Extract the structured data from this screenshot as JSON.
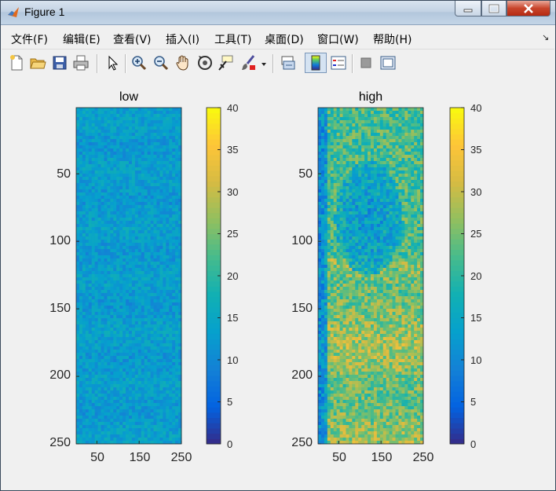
{
  "window": {
    "title": "Figure 1",
    "app_icon": "matlab-logo-icon",
    "controls": [
      "minimize-icon",
      "maximize-icon",
      "close-icon"
    ]
  },
  "menu": {
    "items": [
      "文件(F)",
      "编辑(E)",
      "查看(V)",
      "插入(I)",
      "工具(T)",
      "桌面(D)",
      "窗口(W)",
      "帮助(H)"
    ],
    "overflow_icon": "toolbar-dock-arrow-icon"
  },
  "toolbar": {
    "buttons": [
      "new-figure-icon",
      "open-file-icon",
      "save-icon",
      "print-icon",
      "edit-plot-arrow-icon",
      "zoom-in-icon",
      "zoom-out-icon",
      "pan-hand-icon",
      "rotate-3d-icon",
      "data-cursor-icon",
      "brush-icon",
      "brush-dropdown-icon",
      "link-plot-icon",
      "colorbar-icon",
      "legend-icon",
      "hide-plot-tools-icon",
      "show-plot-tools-icon"
    ],
    "active": "colorbar-icon"
  },
  "colors": {
    "colormap": "parula",
    "window_background": "#f0f0f0"
  },
  "chart_data": [
    {
      "type": "heatmap",
      "title": "low",
      "x_range": [
        1,
        250
      ],
      "y_range": [
        1,
        250
      ],
      "y_reversed": true,
      "xticks": [
        "50",
        "150",
        "250"
      ],
      "yticks": [
        "50",
        "100",
        "150",
        "200",
        "250"
      ],
      "color_range": [
        0,
        40
      ],
      "colorbar_ticks": [
        "0",
        "5",
        "10",
        "15",
        "20",
        "25",
        "30",
        "35",
        "40"
      ],
      "typical_value_range": [
        8,
        18
      ],
      "mean_value": 13
    },
    {
      "type": "heatmap",
      "title": "high",
      "x_range": [
        1,
        250
      ],
      "y_range": [
        1,
        250
      ],
      "y_reversed": true,
      "xticks": [
        "50",
        "150",
        "250"
      ],
      "yticks": [
        "50",
        "100",
        "150",
        "200",
        "250"
      ],
      "color_range": [
        0,
        40
      ],
      "colorbar_ticks": [
        "0",
        "5",
        "10",
        "15",
        "20",
        "25",
        "30",
        "35",
        "40"
      ],
      "typical_value_range": [
        10,
        35
      ],
      "dark_region_mean": 13,
      "bright_region_mean": 28,
      "left_edge_mean": 10
    }
  ]
}
